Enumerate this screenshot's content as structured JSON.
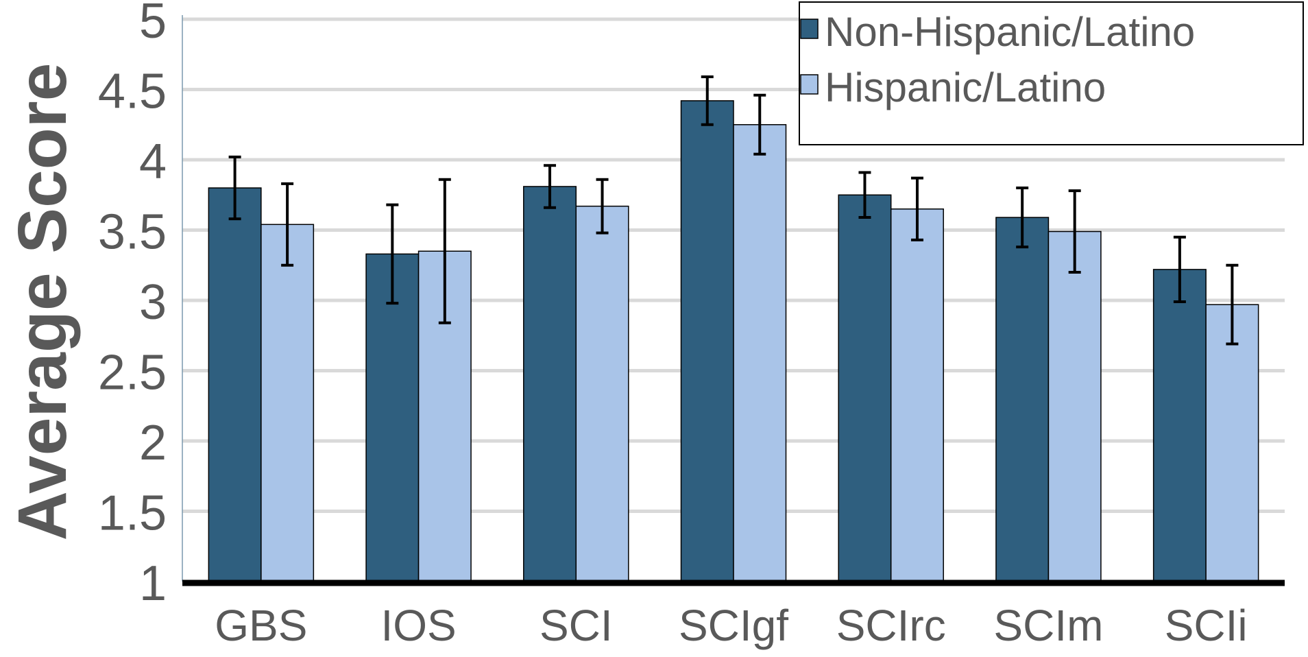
{
  "chart_data": {
    "type": "bar",
    "title": "",
    "xlabel": "",
    "ylabel": "Average Score",
    "ylim": [
      1,
      5
    ],
    "yticks": [
      "1",
      "1.5",
      "2",
      "2.5",
      "3",
      "3.5",
      "4",
      "4.5",
      "5"
    ],
    "grid": true,
    "legend_position": "top-right",
    "categories": [
      "GBS",
      "IOS",
      "SCI",
      "SCIgf",
      "SCIrc",
      "SCIm",
      "SCIi"
    ],
    "series": [
      {
        "name": "Non-Hispanic/Latino",
        "color": "#2F5F7F",
        "values": [
          3.8,
          3.33,
          3.81,
          4.42,
          3.75,
          3.59,
          3.22
        ],
        "errors": [
          0.22,
          0.35,
          0.15,
          0.17,
          0.16,
          0.21,
          0.23
        ]
      },
      {
        "name": "Hispanic/Latino",
        "color": "#A9C4E8",
        "values": [
          3.54,
          3.35,
          3.67,
          4.25,
          3.65,
          3.49,
          2.97
        ],
        "errors": [
          0.29,
          0.51,
          0.19,
          0.21,
          0.22,
          0.29,
          0.28
        ]
      }
    ]
  }
}
